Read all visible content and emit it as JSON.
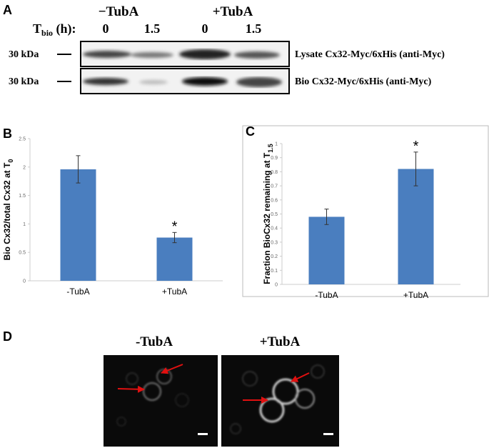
{
  "panels": {
    "a": "A",
    "b": "B",
    "c": "C",
    "d": "D"
  },
  "blot": {
    "groups": [
      "−TubA",
      "+TubA"
    ],
    "time_label": "T",
    "time_sub": "bio",
    "time_unit": " (h):",
    "times": [
      "0",
      "1.5",
      "0",
      "1.5"
    ],
    "markers": [
      "30 kDa",
      "30 kDa"
    ],
    "rows": [
      "Lysate Cx32-Myc/6xHis (anti-Myc)",
      "Bio Cx32-Myc/6xHis (anti-Myc)"
    ]
  },
  "chart_data": [
    {
      "type": "bar",
      "ylabel": "Bio Cx32/total Cx32 at T",
      "ylabel_sub": "0",
      "categories": [
        "-TubA",
        "+TubA"
      ],
      "values": [
        1.96,
        0.76
      ],
      "errors": [
        0.24,
        0.09
      ],
      "value_annotations": [
        null,
        "*"
      ],
      "color": "#4a7ebf",
      "ylim": [
        0,
        2.5
      ],
      "yticks": [
        0,
        0.5,
        1,
        1.5,
        2,
        2.5
      ]
    },
    {
      "type": "bar",
      "ylabel": "Fraction BioCx32 remaining at T",
      "ylabel_sub": "1.5",
      "categories": [
        "-TubA",
        "+TubA"
      ],
      "values": [
        0.48,
        0.82
      ],
      "errors": [
        0.055,
        0.12
      ],
      "value_annotations": [
        null,
        "*"
      ],
      "color": "#4a7ebf",
      "ylim": [
        0,
        1
      ],
      "yticks": [
        0,
        0.1,
        0.2,
        0.3,
        0.4,
        0.5,
        0.6,
        0.7,
        0.8,
        0.9,
        1
      ]
    }
  ],
  "micro": {
    "conditions": [
      "-TubA",
      "+TubA"
    ]
  }
}
